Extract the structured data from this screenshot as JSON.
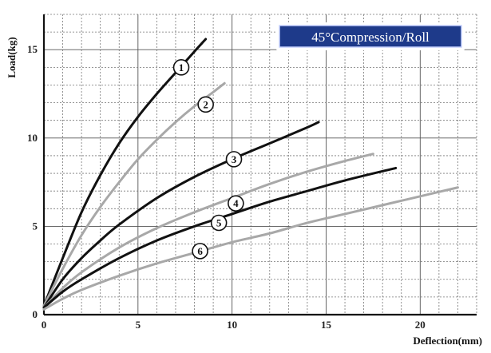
{
  "chart_data": {
    "type": "line",
    "title": "45°Compression/Roll",
    "xlabel": "Deflection(mm)",
    "ylabel": "Load(kg)",
    "xlim": [
      0,
      23
    ],
    "ylim": [
      0,
      17
    ],
    "xticks": [
      0,
      5,
      10,
      15,
      20
    ],
    "yticks": [
      0,
      5,
      10,
      15
    ],
    "grid": true,
    "legend": "none",
    "colors": {
      "dark": "#111111",
      "light": "#a8a8a8",
      "title_box": "#1e3a8a"
    },
    "series": [
      {
        "marker": "1",
        "color_role": "dark",
        "points": [
          [
            0,
            0.5
          ],
          [
            1,
            3.2
          ],
          [
            2,
            5.8
          ],
          [
            3,
            7.9
          ],
          [
            4,
            9.7
          ],
          [
            5,
            11.2
          ],
          [
            6,
            12.5
          ],
          [
            7,
            13.7
          ],
          [
            8,
            14.9
          ],
          [
            8.6,
            15.6
          ]
        ],
        "marker_at": [
          7.3,
          14.0
        ]
      },
      {
        "marker": "2",
        "color_role": "light",
        "points": [
          [
            0,
            0.5
          ],
          [
            1,
            2.6
          ],
          [
            2,
            4.5
          ],
          [
            3,
            6.1
          ],
          [
            4,
            7.5
          ],
          [
            5,
            8.8
          ],
          [
            6,
            9.9
          ],
          [
            7,
            10.9
          ],
          [
            8,
            11.8
          ],
          [
            9,
            12.6
          ],
          [
            9.6,
            13.1
          ]
        ],
        "marker_at": [
          8.6,
          11.9
        ]
      },
      {
        "marker": "3",
        "color_role": "dark",
        "points": [
          [
            0,
            0.4
          ],
          [
            1,
            2.0
          ],
          [
            2,
            3.2
          ],
          [
            3,
            4.2
          ],
          [
            4,
            5.1
          ],
          [
            6,
            6.6
          ],
          [
            8,
            7.8
          ],
          [
            10,
            8.8
          ],
          [
            12,
            9.7
          ],
          [
            14,
            10.6
          ],
          [
            14.6,
            10.9
          ]
        ],
        "marker_at": [
          10.1,
          8.8
        ]
      },
      {
        "marker": "4",
        "color_role": "light",
        "points": [
          [
            0,
            0.4
          ],
          [
            1,
            1.5
          ],
          [
            2,
            2.4
          ],
          [
            4,
            3.8
          ],
          [
            6,
            4.9
          ],
          [
            8,
            5.8
          ],
          [
            10,
            6.6
          ],
          [
            12,
            7.4
          ],
          [
            14,
            8.1
          ],
          [
            16,
            8.7
          ],
          [
            17.5,
            9.1
          ]
        ],
        "marker_at": [
          10.2,
          6.3
        ]
      },
      {
        "marker": "5",
        "color_role": "dark",
        "points": [
          [
            0,
            0.4
          ],
          [
            1,
            1.3
          ],
          [
            2,
            2.0
          ],
          [
            4,
            3.2
          ],
          [
            6,
            4.2
          ],
          [
            8,
            5.0
          ],
          [
            10,
            5.7
          ],
          [
            12,
            6.4
          ],
          [
            14,
            7.0
          ],
          [
            16,
            7.6
          ],
          [
            18.7,
            8.3
          ]
        ],
        "marker_at": [
          9.3,
          5.2
        ]
      },
      {
        "marker": "6",
        "color_role": "light",
        "points": [
          [
            0,
            0.3
          ],
          [
            1,
            0.9
          ],
          [
            2,
            1.4
          ],
          [
            4,
            2.2
          ],
          [
            6,
            2.9
          ],
          [
            8,
            3.5
          ],
          [
            10,
            4.1
          ],
          [
            12,
            4.6
          ],
          [
            14,
            5.2
          ],
          [
            16,
            5.7
          ],
          [
            18,
            6.2
          ],
          [
            20,
            6.7
          ],
          [
            22,
            7.2
          ]
        ],
        "marker_at": [
          8.3,
          3.6
        ]
      }
    ]
  }
}
